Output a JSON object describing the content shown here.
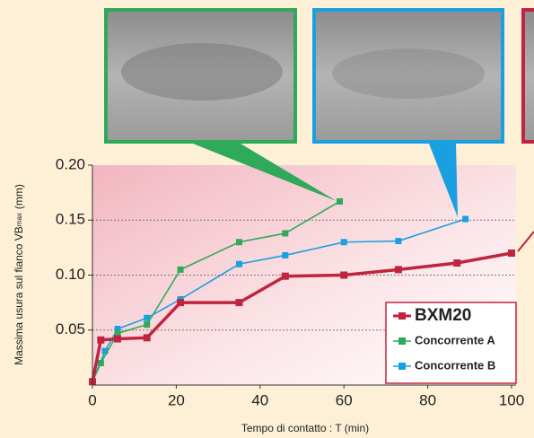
{
  "chart_data": {
    "type": "line",
    "ylabel": {
      "main": "Massima usura sul fianco VB",
      "sub": "max",
      "unit": "(mm)"
    },
    "xlabel": "Tempo di contatto : T (min)",
    "xlim": [
      0,
      100
    ],
    "xticks": [
      0,
      20,
      40,
      60,
      80,
      100
    ],
    "ylim": [
      0,
      0.2
    ],
    "yticks": [
      0.05,
      {
        "value": 0.1,
        "label": "0.10"
      },
      0.15,
      {
        "value": 0.2,
        "label": "0.20"
      }
    ],
    "grid": true,
    "legend": "lower right",
    "series": [
      {
        "name": "BXM20",
        "color": "#c0243e",
        "x": [
          0,
          2,
          6,
          13,
          21,
          35,
          46,
          60,
          73,
          87,
          100
        ],
        "values": [
          0.003,
          0.041,
          0.042,
          0.043,
          0.075,
          0.075,
          0.099,
          0.1,
          0.105,
          0.111,
          0.12
        ]
      },
      {
        "name": "Concorrente A",
        "color": "#2eaa5a",
        "x": [
          0,
          2,
          6,
          13,
          21,
          35,
          46,
          59
        ],
        "values": [
          0.003,
          0.02,
          0.047,
          0.055,
          0.105,
          0.13,
          0.138,
          0.167
        ]
      },
      {
        "name": "Concorrente B",
        "color": "#1aa0e0",
        "x": [
          0,
          3,
          6,
          13,
          21,
          35,
          46,
          60,
          73,
          89
        ],
        "values": [
          0.003,
          0.031,
          0.051,
          0.061,
          0.078,
          0.11,
          0.118,
          0.13,
          0.131,
          0.151
        ]
      }
    ]
  }
}
